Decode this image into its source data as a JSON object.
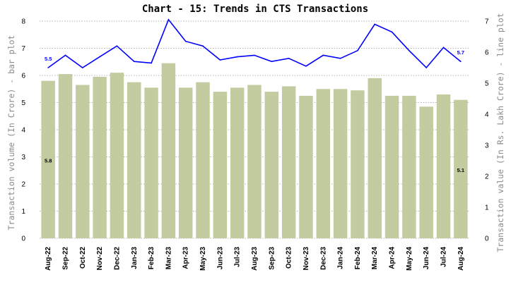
{
  "chart_data": {
    "type": "bar",
    "title": "Chart - 15: Trends in CTS Transactions",
    "categories": [
      "Aug-22",
      "Sep-22",
      "Oct-22",
      "Nov-22",
      "Dec-22",
      "Jan-23",
      "Feb-23",
      "Mar-23",
      "Apr-23",
      "May-23",
      "Jun-23",
      "Jul-23",
      "Aug-23",
      "Sep-23",
      "Oct-23",
      "Nov-23",
      "Dec-23",
      "Jan-24",
      "Feb-24",
      "Mar-24",
      "Apr-24",
      "May-24",
      "Jun-24",
      "Jul-24",
      "Aug-24"
    ],
    "ylabel": "Transaction volume (In Crore) - bar plot",
    "y2label": "Transaction value (In Rs. Lakh Crore) - line plot",
    "ylim": [
      0,
      8
    ],
    "y2lim": [
      0,
      7
    ],
    "yticks": [
      "0",
      "1",
      "2",
      "3",
      "4",
      "5",
      "6",
      "7",
      "8"
    ],
    "y2ticks": [
      "0",
      "1",
      "2",
      "3",
      "4",
      "5",
      "6",
      "7"
    ],
    "grid": "horizontal dotted",
    "series": [
      {
        "axis": "left",
        "type": "bar",
        "color": "#c2cca0",
        "values": [
          5.8,
          6.05,
          5.65,
          5.95,
          6.1,
          5.75,
          5.55,
          6.45,
          5.55,
          5.75,
          5.4,
          5.55,
          5.65,
          5.4,
          5.6,
          5.25,
          5.5,
          5.5,
          5.45,
          5.9,
          5.25,
          5.25,
          4.85,
          5.3,
          5.1
        ]
      },
      {
        "axis": "right",
        "type": "line",
        "color": "#0000ff",
        "values": [
          5.5,
          5.9,
          5.5,
          5.85,
          6.2,
          5.7,
          5.65,
          7.05,
          6.35,
          6.2,
          5.75,
          5.85,
          5.9,
          5.7,
          5.8,
          5.55,
          5.9,
          5.8,
          6.05,
          6.9,
          6.65,
          6.05,
          5.5,
          6.15,
          5.7
        ]
      }
    ],
    "data_labels": [
      {
        "series": 0,
        "index": 0,
        "text": "5.8"
      },
      {
        "series": 0,
        "index": 24,
        "text": "5.1"
      },
      {
        "series": 1,
        "index": 0,
        "text": "5.5"
      },
      {
        "series": 1,
        "index": 24,
        "text": "5.7"
      }
    ]
  }
}
